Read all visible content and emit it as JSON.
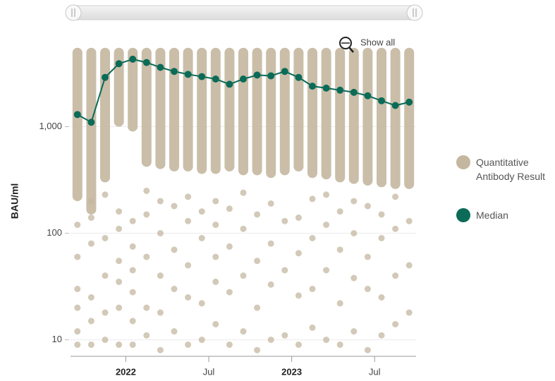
{
  "chart_data": {
    "type": "scatter",
    "y_label": "BAU/ml",
    "log_y": true,
    "grid": true,
    "ylim": [
      7,
      6000
    ],
    "yticks": [
      10,
      100,
      {
        "value": 1000,
        "label": "1,000"
      }
    ],
    "xlim": [
      "2021-09",
      "2023-09"
    ],
    "xticks": [
      {
        "value": "2022-01",
        "label": "2022"
      },
      {
        "value": "2022-07",
        "label": "Jul"
      },
      {
        "value": "2023-01",
        "label": "2023"
      },
      {
        "value": "2023-07",
        "label": "Jul"
      }
    ],
    "legend": "right",
    "show_all": "Show all",
    "series": [
      {
        "name": "Quantitative Antibody Result",
        "color": "#c4b7a0",
        "x": [
          "2021-09",
          "2021-10",
          "2021-11",
          "2021-12",
          "2022-01",
          "2022-02",
          "2022-03",
          "2022-04",
          "2022-05",
          "2022-06",
          "2022-07",
          "2022-08",
          "2022-09",
          "2022-10",
          "2022-11",
          "2022-12",
          "2023-01",
          "2023-02",
          "2023-03",
          "2023-04",
          "2023-05",
          "2023-06",
          "2023-07",
          "2023-08",
          "2023-09"
        ],
        "low": [
          200,
          150,
          300,
          1000,
          900,
          420,
          400,
          380,
          380,
          360,
          360,
          380,
          350,
          350,
          330,
          350,
          380,
          330,
          320,
          300,
          290,
          280,
          270,
          260,
          260
        ],
        "high": [
          5500,
          5500,
          5500,
          5500,
          5500,
          5500,
          5500,
          5500,
          5500,
          5500,
          5500,
          5500,
          5500,
          5500,
          5500,
          5500,
          5500,
          5500,
          5500,
          5500,
          5500,
          5500,
          5500,
          5500,
          5500
        ],
        "points_x": [
          "2021-09",
          "2021-09",
          "2021-09",
          "2021-09",
          "2021-09",
          "2021-09",
          "2021-10",
          "2021-10",
          "2021-10",
          "2021-10",
          "2021-10",
          "2021-10",
          "2021-11",
          "2021-11",
          "2021-11",
          "2021-11",
          "2021-11",
          "2021-12",
          "2021-12",
          "2021-12",
          "2021-12",
          "2021-12",
          "2021-12",
          "2022-01",
          "2022-01",
          "2022-01",
          "2022-01",
          "2022-01",
          "2022-01",
          "2022-02",
          "2022-02",
          "2022-02",
          "2022-02",
          "2022-02",
          "2022-03",
          "2022-03",
          "2022-03",
          "2022-03",
          "2022-03",
          "2022-04",
          "2022-04",
          "2022-04",
          "2022-04",
          "2022-05",
          "2022-05",
          "2022-05",
          "2022-05",
          "2022-05",
          "2022-06",
          "2022-06",
          "2022-06",
          "2022-06",
          "2022-07",
          "2022-07",
          "2022-07",
          "2022-07",
          "2022-07",
          "2022-08",
          "2022-08",
          "2022-08",
          "2022-08",
          "2022-09",
          "2022-09",
          "2022-09",
          "2022-09",
          "2022-10",
          "2022-10",
          "2022-10",
          "2022-10",
          "2022-11",
          "2022-11",
          "2022-11",
          "2022-11",
          "2022-12",
          "2022-12",
          "2022-12",
          "2023-01",
          "2023-01",
          "2023-01",
          "2023-01",
          "2023-02",
          "2023-02",
          "2023-02",
          "2023-02",
          "2023-03",
          "2023-03",
          "2023-03",
          "2023-03",
          "2023-04",
          "2023-04",
          "2023-04",
          "2023-04",
          "2023-05",
          "2023-05",
          "2023-05",
          "2023-05",
          "2023-06",
          "2023-06",
          "2023-06",
          "2023-06",
          "2023-07",
          "2023-07",
          "2023-07",
          "2023-07",
          "2023-08",
          "2023-08",
          "2023-08",
          "2023-08",
          "2023-09",
          "2023-09",
          "2023-09"
        ],
        "points_values": [
          30,
          12,
          9,
          60,
          120,
          20,
          9,
          15,
          25,
          80,
          140,
          200,
          10,
          40,
          90,
          18,
          230,
          9,
          20,
          35,
          55,
          110,
          160,
          9,
          15,
          28,
          45,
          75,
          130,
          11,
          20,
          60,
          150,
          250,
          8,
          18,
          40,
          100,
          200,
          12,
          30,
          70,
          180,
          9,
          25,
          50,
          130,
          220,
          10,
          22,
          90,
          160,
          14,
          35,
          60,
          120,
          200,
          9,
          28,
          75,
          170,
          12,
          40,
          110,
          240,
          8,
          20,
          55,
          150,
          10,
          33,
          80,
          190,
          11,
          45,
          130,
          9,
          26,
          65,
          140,
          13,
          30,
          90,
          210,
          10,
          45,
          120,
          230,
          9,
          22,
          70,
          160,
          12,
          38,
          100,
          200,
          8,
          30,
          60,
          180,
          11,
          25,
          90,
          150,
          14,
          40,
          110,
          220,
          18,
          50,
          130
        ]
      },
      {
        "name": "Median",
        "color": "#0b6b57",
        "x": [
          "2021-09",
          "2021-10",
          "2021-11",
          "2021-12",
          "2022-01",
          "2022-02",
          "2022-03",
          "2022-04",
          "2022-05",
          "2022-06",
          "2022-07",
          "2022-08",
          "2022-09",
          "2022-10",
          "2022-11",
          "2022-12",
          "2023-01",
          "2023-02",
          "2023-03",
          "2023-04",
          "2023-05",
          "2023-06",
          "2023-07",
          "2023-08",
          "2023-09"
        ],
        "values": [
          1300,
          1100,
          2900,
          3900,
          4300,
          4000,
          3600,
          3300,
          3100,
          2950,
          2800,
          2500,
          2800,
          3050,
          3000,
          3300,
          2900,
          2400,
          2300,
          2200,
          2100,
          1950,
          1750,
          1580,
          1700
        ]
      }
    ]
  }
}
